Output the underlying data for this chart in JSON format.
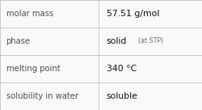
{
  "rows": [
    {
      "label": "molar mass",
      "value": "57.51 g/mol",
      "has_annotation": false,
      "annotation": ""
    },
    {
      "label": "phase",
      "value": "solid",
      "has_annotation": true,
      "annotation": "(at STP)"
    },
    {
      "label": "melting point",
      "value": "340 °C",
      "has_annotation": false,
      "annotation": ""
    },
    {
      "label": "solubility in water",
      "value": "soluble",
      "has_annotation": false,
      "annotation": ""
    }
  ],
  "col_split": 0.485,
  "background_color": "#f9f9f9",
  "border_color": "#c0c0c0",
  "text_color_label": "#505050",
  "text_color_value": "#111111",
  "annotation_color": "#707070",
  "label_fontsize": 7.2,
  "value_fontsize": 7.8,
  "annotation_fontsize": 5.8
}
